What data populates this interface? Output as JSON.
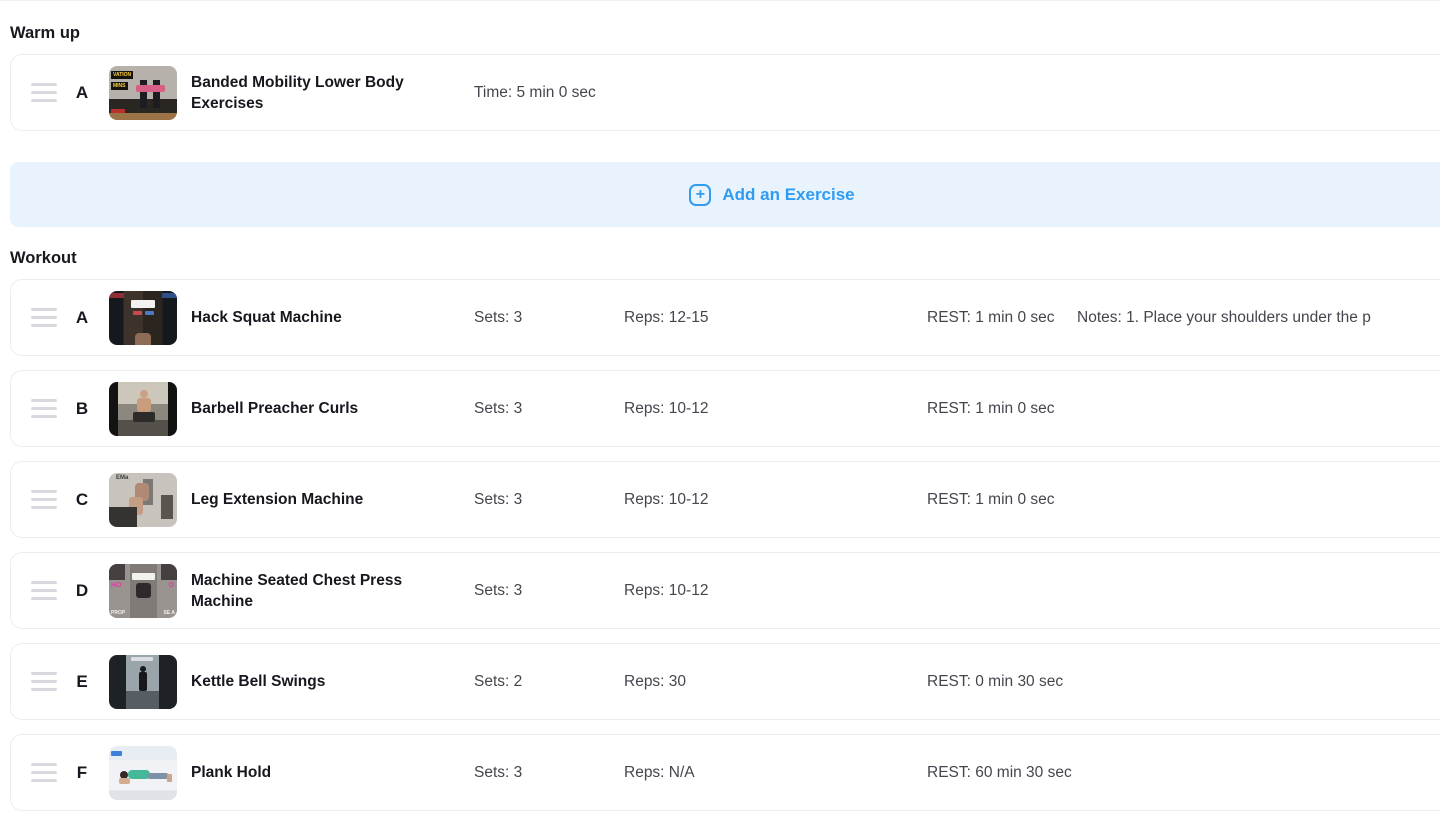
{
  "sections": [
    {
      "title": "Warm up",
      "rows": [
        {
          "letter": "A",
          "name": "Banded Mobility Lower Body Exercises",
          "col1": "Time: 5 min 0 sec",
          "col2": "",
          "col3": "",
          "col4": "",
          "thumb": "banded-mobility-video-thumbnail",
          "thumb_text": [
            "VATION",
            "MINS"
          ]
        }
      ]
    },
    {
      "title": "Workout",
      "rows": [
        {
          "letter": "A",
          "name": "Hack Squat Machine",
          "col1": "Sets: 3",
          "col2": "Reps: 12-15",
          "col3": "REST: 1 min 0 sec",
          "col4": "Notes: 1. Place your shoulders under the p",
          "thumb": "hack-squat-video-thumbnail",
          "thumb_text": []
        },
        {
          "letter": "B",
          "name": "Barbell Preacher Curls",
          "col1": "Sets: 3",
          "col2": "Reps: 10-12",
          "col3": "REST: 1 min 0 sec",
          "col4": "",
          "thumb": "preacher-curls-video-thumbnail",
          "thumb_text": []
        },
        {
          "letter": "C",
          "name": "Leg Extension Machine",
          "col1": "Sets: 3",
          "col2": "Reps: 10-12",
          "col3": "REST: 1 min 0 sec",
          "col4": "",
          "thumb": "leg-extension-video-thumbnail",
          "thumb_text": [
            "EMa"
          ]
        },
        {
          "letter": "D",
          "name": "Machine Seated Chest Press Machine",
          "col1": "Sets: 3",
          "col2": "Reps: 10-12",
          "col3": "",
          "col4": "",
          "thumb": "chest-press-video-thumbnail",
          "thumb_text": [
            "HO",
            "O",
            "PROP",
            "SE A"
          ]
        },
        {
          "letter": "E",
          "name": "Kettle Bell Swings",
          "col1": "Sets: 2",
          "col2": "Reps: 30",
          "col3": "REST: 0 min 30 sec",
          "col4": "",
          "thumb": "kettlebell-swings-video-thumbnail",
          "thumb_text": []
        },
        {
          "letter": "F",
          "name": "Plank Hold",
          "col1": "Sets: 3",
          "col2": "Reps: N/A",
          "col3": "REST: 60 min 30 sec",
          "col4": "",
          "thumb": "plank-hold-photo-thumbnail",
          "thumb_text": []
        }
      ]
    }
  ],
  "add_exercise": {
    "label": "Add an Exercise",
    "plus": "+"
  },
  "icons": {
    "drag_handle": "three-line-grip",
    "add": "plus-in-rounded-square"
  },
  "colors": {
    "accent": "#2f9cf2",
    "banner_bg": "#e9f3fd",
    "card_border": "#ededf0"
  }
}
